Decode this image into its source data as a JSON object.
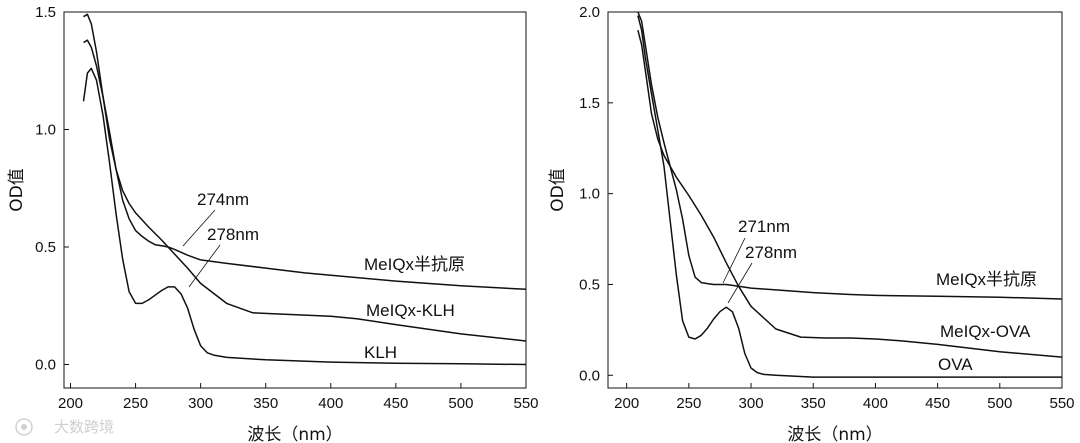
{
  "chart_data": [
    {
      "type": "line",
      "xlabel": "波长（nm）",
      "ylabel": "OD值",
      "xlim": [
        195,
        550
      ],
      "ylim": [
        -0.1,
        1.5
      ],
      "xticks": [
        200,
        250,
        300,
        350,
        400,
        450,
        500,
        550
      ],
      "yticks": [
        0.0,
        0.5,
        1.0,
        1.5
      ],
      "ytick_labels": [
        "0.0",
        "0.5",
        "1.0",
        "1.5"
      ],
      "series": [
        {
          "name": "MeIQx半抗原",
          "x": [
            210,
            213,
            216,
            220,
            225,
            230,
            235,
            240,
            245,
            250,
            255,
            260,
            265,
            270,
            275,
            280,
            290,
            300,
            320,
            350,
            380,
            400,
            450,
            500,
            550
          ],
          "y": [
            1.37,
            1.38,
            1.35,
            1.27,
            1.14,
            0.99,
            0.83,
            0.7,
            0.62,
            0.57,
            0.545,
            0.525,
            0.51,
            0.505,
            0.5,
            0.49,
            0.465,
            0.445,
            0.43,
            0.41,
            0.39,
            0.38,
            0.355,
            0.335,
            0.32
          ]
        },
        {
          "name": "MeIQx-KLH",
          "x": [
            210,
            213,
            216,
            220,
            225,
            230,
            235,
            240,
            245,
            250,
            260,
            270,
            280,
            290,
            300,
            320,
            340,
            360,
            380,
            400,
            420,
            450,
            500,
            550
          ],
          "y": [
            1.48,
            1.49,
            1.45,
            1.33,
            1.14,
            0.96,
            0.83,
            0.74,
            0.685,
            0.645,
            0.585,
            0.53,
            0.47,
            0.41,
            0.345,
            0.26,
            0.22,
            0.215,
            0.21,
            0.205,
            0.195,
            0.17,
            0.13,
            0.1
          ]
        },
        {
          "name": "KLH",
          "x": [
            210,
            213,
            216,
            220,
            225,
            230,
            235,
            240,
            245,
            250,
            255,
            260,
            265,
            270,
            275,
            280,
            285,
            290,
            295,
            300,
            305,
            310,
            320,
            350,
            400,
            450,
            500,
            550
          ],
          "y": [
            1.12,
            1.24,
            1.26,
            1.21,
            1.06,
            0.86,
            0.64,
            0.45,
            0.31,
            0.26,
            0.26,
            0.275,
            0.295,
            0.315,
            0.33,
            0.33,
            0.3,
            0.24,
            0.15,
            0.08,
            0.05,
            0.04,
            0.03,
            0.02,
            0.01,
            0.005,
            0.003,
            0.0
          ]
        }
      ],
      "annotations": [
        {
          "text": "274nm",
          "x": 274
        },
        {
          "text": "278nm",
          "x": 278
        }
      ]
    },
    {
      "type": "line",
      "xlabel": "波长（nm）",
      "ylabel": "OD值",
      "xlim": [
        185,
        550
      ],
      "ylim": [
        -0.07,
        2.0
      ],
      "xticks": [
        200,
        250,
        300,
        350,
        400,
        450,
        500,
        550
      ],
      "yticks": [
        0.0,
        0.5,
        1.0,
        1.5,
        2.0
      ],
      "ytick_labels": [
        "0.0",
        "0.5",
        "1.0",
        "1.5",
        "2.0"
      ],
      "series": [
        {
          "name": "MeIQx半抗原",
          "x": [
            209,
            212,
            215,
            220,
            225,
            230,
            235,
            240,
            245,
            250,
            255,
            260,
            265,
            270,
            280,
            290,
            300,
            320,
            350,
            380,
            400,
            450,
            500,
            550
          ],
          "y": [
            2.0,
            1.95,
            1.82,
            1.6,
            1.42,
            1.28,
            1.15,
            1.02,
            0.86,
            0.66,
            0.54,
            0.51,
            0.505,
            0.5,
            0.5,
            0.49,
            0.48,
            0.47,
            0.455,
            0.445,
            0.44,
            0.435,
            0.43,
            0.42
          ]
        },
        {
          "name": "MeIQx-OVA",
          "x": [
            209,
            212,
            215,
            220,
            225,
            230,
            235,
            240,
            250,
            260,
            270,
            280,
            290,
            300,
            320,
            340,
            360,
            380,
            400,
            420,
            450,
            500,
            550
          ],
          "y": [
            1.9,
            1.82,
            1.68,
            1.44,
            1.3,
            1.21,
            1.15,
            1.09,
            0.99,
            0.88,
            0.76,
            0.62,
            0.49,
            0.38,
            0.255,
            0.21,
            0.205,
            0.205,
            0.2,
            0.19,
            0.17,
            0.13,
            0.1
          ]
        },
        {
          "name": "OVA",
          "x": [
            209,
            212,
            215,
            220,
            225,
            230,
            235,
            240,
            245,
            250,
            255,
            260,
            265,
            270,
            275,
            280,
            285,
            290,
            295,
            300,
            305,
            310,
            320,
            350,
            400,
            450,
            500,
            550
          ],
          "y": [
            1.98,
            1.9,
            1.75,
            1.55,
            1.35,
            1.15,
            0.85,
            0.55,
            0.3,
            0.21,
            0.2,
            0.22,
            0.26,
            0.31,
            0.35,
            0.375,
            0.35,
            0.26,
            0.12,
            0.04,
            0.015,
            0.005,
            0.0,
            -0.01,
            -0.01,
            -0.01,
            -0.01,
            -0.01
          ]
        }
      ],
      "annotations": [
        {
          "text": "271nm",
          "x": 271
        },
        {
          "text": "278nm",
          "x": 278
        }
      ]
    }
  ],
  "watermark": "大数跨境"
}
